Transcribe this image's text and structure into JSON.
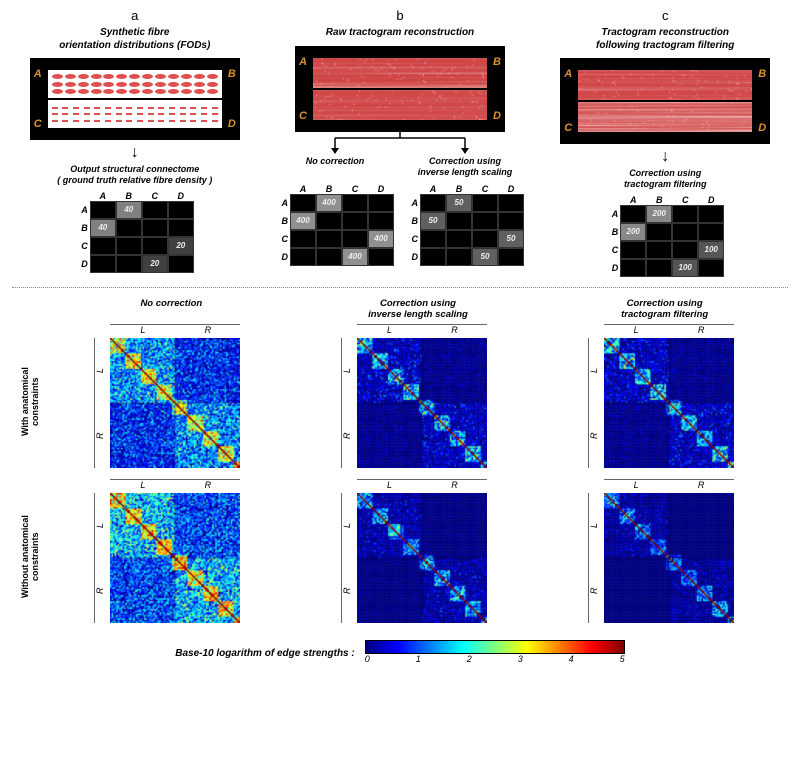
{
  "panels": {
    "a": {
      "letter": "a",
      "title": "Synthetic fibre\norientation distributions (FODs)",
      "corners": [
        "A",
        "B",
        "C",
        "D"
      ],
      "sub_caption": "Output structural connectome\n( ground truth relative fibre density )",
      "matrix": {
        "labels": [
          "A",
          "B",
          "C",
          "D"
        ],
        "cells": [
          [
            "",
            "40",
            "",
            ""
          ],
          [
            "40",
            "",
            "",
            ""
          ],
          [
            "",
            "",
            "",
            "20"
          ],
          [
            "",
            "",
            "20",
            ""
          ]
        ],
        "shades": [
          [
            "#000",
            "#808080",
            "#000",
            "#000"
          ],
          [
            "#808080",
            "#000",
            "#000",
            "#000"
          ],
          [
            "#000",
            "#000",
            "#000",
            "#404040"
          ],
          [
            "#000",
            "#000",
            "#404040",
            "#000"
          ]
        ]
      }
    },
    "b": {
      "letter": "b",
      "title": "Raw tractogram reconstruction",
      "corners": [
        "A",
        "B",
        "C",
        "D"
      ],
      "tract_color": "#e86f6f",
      "left": {
        "caption": "No correction",
        "matrix": {
          "labels": [
            "A",
            "B",
            "C",
            "D"
          ],
          "cells": [
            [
              "",
              "400",
              "",
              ""
            ],
            [
              "400",
              "",
              "",
              ""
            ],
            [
              "",
              "",
              "",
              "400"
            ],
            [
              "",
              "",
              "400",
              ""
            ]
          ],
          "shades": [
            [
              "#000",
              "#909090",
              "#000",
              "#000"
            ],
            [
              "#909090",
              "#000",
              "#000",
              "#000"
            ],
            [
              "#000",
              "#000",
              "#000",
              "#909090"
            ],
            [
              "#000",
              "#000",
              "#909090",
              "#000"
            ]
          ]
        }
      },
      "right": {
        "caption": "Correction using\ninverse length scaling",
        "matrix": {
          "labels": [
            "A",
            "B",
            "C",
            "D"
          ],
          "cells": [
            [
              "",
              "50",
              "",
              ""
            ],
            [
              "50",
              "",
              "",
              ""
            ],
            [
              "",
              "",
              "",
              "50"
            ],
            [
              "",
              "",
              "50",
              ""
            ]
          ],
          "shades": [
            [
              "#000",
              "#606060",
              "#000",
              "#000"
            ],
            [
              "#606060",
              "#000",
              "#000",
              "#000"
            ],
            [
              "#000",
              "#000",
              "#000",
              "#606060"
            ],
            [
              "#000",
              "#000",
              "#606060",
              "#000"
            ]
          ]
        }
      }
    },
    "c": {
      "letter": "c",
      "title": "Tractogram reconstruction\nfollowing tractogram filtering",
      "corners": [
        "A",
        "B",
        "C",
        "D"
      ],
      "tract_color": "#e86f6f",
      "sub_caption": "Correction using\ntractogram filtering",
      "matrix": {
        "labels": [
          "A",
          "B",
          "C",
          "D"
        ],
        "cells": [
          [
            "",
            "200",
            "",
            ""
          ],
          [
            "200",
            "",
            "",
            ""
          ],
          [
            "",
            "",
            "",
            "100"
          ],
          [
            "",
            "",
            "100",
            ""
          ]
        ],
        "shades": [
          [
            "#000",
            "#888888",
            "#000",
            "#000"
          ],
          [
            "#888888",
            "#000",
            "#000",
            "#000"
          ],
          [
            "#000",
            "#000",
            "#000",
            "#555555"
          ],
          [
            "#000",
            "#000",
            "#555555",
            "#000"
          ]
        ]
      }
    }
  },
  "bottom": {
    "col_titles": [
      "No correction",
      "Correction using\ninverse length scaling",
      "Correction using\ntractogram filtering"
    ],
    "row_titles": [
      "With anatomical\nconstraints",
      "Without anatomical\nconstraints"
    ],
    "lr_labels": [
      "L",
      "R"
    ],
    "heatmaps": [
      [
        {
          "blue_bias": 0.25
        },
        {
          "blue_bias": 0.55
        },
        {
          "blue_bias": 0.55
        }
      ],
      [
        {
          "blue_bias": 0.2
        },
        {
          "blue_bias": 0.6
        },
        {
          "blue_bias": 0.65
        }
      ]
    ]
  },
  "colorbar": {
    "label": "Base-10 logarithm of edge strengths :",
    "stops": [
      "#00007f",
      "#0000ff",
      "#007fff",
      "#00ffff",
      "#7fff7f",
      "#ffff00",
      "#ff7f00",
      "#ff0000",
      "#7f0000"
    ],
    "ticks": [
      "0",
      "1",
      "2",
      "3",
      "4",
      "5"
    ]
  }
}
